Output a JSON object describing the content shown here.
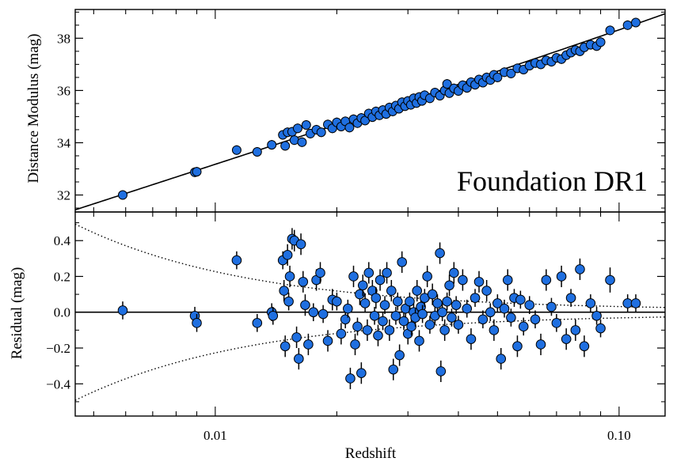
{
  "chart_data": [
    {
      "type": "scatter",
      "panel": "top",
      "annotation": "Foundation DR1",
      "ylabel": "Distance Modulus (mag)",
      "xscale": "log",
      "xlim": [
        0.0045,
        0.13
      ],
      "ylim": [
        31.35,
        39.1
      ],
      "yticks": [
        32,
        34,
        36,
        38
      ],
      "grid": false,
      "model_line": "cosmology-fit",
      "marker_color": "#1f6fe0",
      "points": [
        [
          0.0059,
          32.0
        ],
        [
          0.0089,
          32.87
        ],
        [
          0.009,
          32.89
        ],
        [
          0.0113,
          33.72
        ],
        [
          0.0127,
          33.65
        ],
        [
          0.0138,
          33.92
        ],
        [
          0.0147,
          34.3
        ],
        [
          0.0149,
          33.88
        ],
        [
          0.0151,
          34.4
        ],
        [
          0.0155,
          34.42
        ],
        [
          0.0157,
          34.1
        ],
        [
          0.016,
          34.55
        ],
        [
          0.0164,
          34.02
        ],
        [
          0.0168,
          34.68
        ],
        [
          0.0172,
          34.35
        ],
        [
          0.0178,
          34.5
        ],
        [
          0.0183,
          34.4
        ],
        [
          0.019,
          34.7
        ],
        [
          0.0195,
          34.55
        ],
        [
          0.02,
          34.78
        ],
        [
          0.0205,
          34.62
        ],
        [
          0.021,
          34.82
        ],
        [
          0.0215,
          34.58
        ],
        [
          0.022,
          34.9
        ],
        [
          0.0225,
          34.75
        ],
        [
          0.023,
          34.95
        ],
        [
          0.0235,
          34.85
        ],
        [
          0.024,
          35.12
        ],
        [
          0.0245,
          34.98
        ],
        [
          0.025,
          35.2
        ],
        [
          0.0255,
          35.05
        ],
        [
          0.026,
          35.25
        ],
        [
          0.0265,
          35.1
        ],
        [
          0.027,
          35.35
        ],
        [
          0.0275,
          35.2
        ],
        [
          0.028,
          35.42
        ],
        [
          0.0285,
          35.3
        ],
        [
          0.029,
          35.55
        ],
        [
          0.0295,
          35.4
        ],
        [
          0.03,
          35.6
        ],
        [
          0.0305,
          35.45
        ],
        [
          0.031,
          35.7
        ],
        [
          0.0315,
          35.52
        ],
        [
          0.032,
          35.75
        ],
        [
          0.0325,
          35.6
        ],
        [
          0.033,
          35.82
        ],
        [
          0.034,
          35.7
        ],
        [
          0.035,
          35.92
        ],
        [
          0.036,
          35.8
        ],
        [
          0.037,
          36.0
        ],
        [
          0.0375,
          36.25
        ],
        [
          0.038,
          35.9
        ],
        [
          0.039,
          36.08
        ],
        [
          0.04,
          35.98
        ],
        [
          0.041,
          36.2
        ],
        [
          0.042,
          36.1
        ],
        [
          0.043,
          36.32
        ],
        [
          0.044,
          36.22
        ],
        [
          0.045,
          36.42
        ],
        [
          0.046,
          36.3
        ],
        [
          0.047,
          36.5
        ],
        [
          0.048,
          36.4
        ],
        [
          0.049,
          36.6
        ],
        [
          0.05,
          36.5
        ],
        [
          0.052,
          36.7
        ],
        [
          0.054,
          36.65
        ],
        [
          0.056,
          36.85
        ],
        [
          0.058,
          36.8
        ],
        [
          0.06,
          36.95
        ],
        [
          0.062,
          37.05
        ],
        [
          0.064,
          37.0
        ],
        [
          0.066,
          37.15
        ],
        [
          0.068,
          37.1
        ],
        [
          0.07,
          37.25
        ],
        [
          0.072,
          37.2
        ],
        [
          0.074,
          37.35
        ],
        [
          0.076,
          37.45
        ],
        [
          0.078,
          37.55
        ],
        [
          0.08,
          37.5
        ],
        [
          0.082,
          37.65
        ],
        [
          0.085,
          37.75
        ],
        [
          0.088,
          37.7
        ],
        [
          0.09,
          37.85
        ],
        [
          0.095,
          38.3
        ],
        [
          0.105,
          38.5
        ],
        [
          0.11,
          38.6
        ]
      ]
    },
    {
      "type": "scatter",
      "panel": "bottom",
      "xlabel": "Redshift",
      "ylabel": "Residual (mag)",
      "xscale": "log",
      "xlim": [
        0.0045,
        0.13
      ],
      "ylim": [
        -0.58,
        0.56
      ],
      "yticks": [
        -0.4,
        -0.2,
        0.0,
        0.2,
        0.4
      ],
      "xticks": [
        0.01,
        0.1
      ],
      "xtick_labels": [
        "0.01",
        "0.10"
      ],
      "ytick_labels": [
        "−0.4",
        "−0.2",
        "0.0",
        "0.2",
        "0.4"
      ],
      "grid": false,
      "zero_line": true,
      "envelope": "dotted ±σ(z)",
      "marker_color": "#1f6fe0",
      "points": [
        [
          0.0059,
          0.01,
          0.05
        ],
        [
          0.0089,
          -0.02,
          0.05
        ],
        [
          0.009,
          -0.06,
          0.05
        ],
        [
          0.0113,
          0.29,
          0.05
        ],
        [
          0.0127,
          -0.06,
          0.05
        ],
        [
          0.0138,
          0.0,
          0.05
        ],
        [
          0.0139,
          -0.02,
          0.05
        ],
        [
          0.0147,
          0.29,
          0.05
        ],
        [
          0.0148,
          0.12,
          0.06
        ],
        [
          0.0149,
          -0.19,
          0.06
        ],
        [
          0.0151,
          0.32,
          0.06
        ],
        [
          0.0152,
          0.06,
          0.05
        ],
        [
          0.0153,
          0.2,
          0.06
        ],
        [
          0.0155,
          0.41,
          0.06
        ],
        [
          0.0157,
          0.4,
          0.06
        ],
        [
          0.0159,
          -0.14,
          0.06
        ],
        [
          0.0161,
          -0.26,
          0.06
        ],
        [
          0.0163,
          0.38,
          0.06
        ],
        [
          0.0165,
          0.17,
          0.06
        ],
        [
          0.0167,
          0.04,
          0.06
        ],
        [
          0.017,
          -0.18,
          0.06
        ],
        [
          0.0175,
          0.0,
          0.05
        ],
        [
          0.0178,
          0.18,
          0.06
        ],
        [
          0.0182,
          0.22,
          0.06
        ],
        [
          0.0185,
          -0.01,
          0.05
        ],
        [
          0.019,
          -0.16,
          0.06
        ],
        [
          0.0195,
          0.07,
          0.06
        ],
        [
          0.02,
          0.06,
          0.05
        ],
        [
          0.0205,
          -0.12,
          0.06
        ],
        [
          0.021,
          -0.04,
          0.05
        ],
        [
          0.0213,
          0.02,
          0.05
        ],
        [
          0.0216,
          -0.37,
          0.06
        ],
        [
          0.022,
          0.2,
          0.06
        ],
        [
          0.0222,
          -0.18,
          0.06
        ],
        [
          0.0225,
          -0.08,
          0.05
        ],
        [
          0.0228,
          0.1,
          0.06
        ],
        [
          0.023,
          -0.34,
          0.06
        ],
        [
          0.0232,
          0.15,
          0.06
        ],
        [
          0.0235,
          0.05,
          0.05
        ],
        [
          0.0238,
          -0.1,
          0.06
        ],
        [
          0.024,
          0.22,
          0.06
        ],
        [
          0.0245,
          0.12,
          0.06
        ],
        [
          0.0248,
          -0.02,
          0.05
        ],
        [
          0.025,
          0.08,
          0.06
        ],
        [
          0.0253,
          -0.13,
          0.06
        ],
        [
          0.0256,
          0.18,
          0.06
        ],
        [
          0.026,
          -0.05,
          0.05
        ],
        [
          0.0263,
          0.04,
          0.05
        ],
        [
          0.0266,
          0.22,
          0.06
        ],
        [
          0.027,
          -0.1,
          0.06
        ],
        [
          0.0273,
          0.12,
          0.06
        ],
        [
          0.0276,
          -0.32,
          0.06
        ],
        [
          0.028,
          -0.02,
          0.05
        ],
        [
          0.0283,
          0.06,
          0.05
        ],
        [
          0.0286,
          -0.24,
          0.06
        ],
        [
          0.029,
          0.28,
          0.06
        ],
        [
          0.0293,
          -0.05,
          0.05
        ],
        [
          0.0296,
          0.02,
          0.05
        ],
        [
          0.03,
          -0.12,
          0.06
        ],
        [
          0.0303,
          0.06,
          0.05
        ],
        [
          0.0306,
          -0.08,
          0.05
        ],
        [
          0.031,
          0.0,
          0.05
        ],
        [
          0.0313,
          -0.03,
          0.05
        ],
        [
          0.0316,
          0.12,
          0.06
        ],
        [
          0.032,
          -0.16,
          0.06
        ],
        [
          0.0323,
          0.03,
          0.05
        ],
        [
          0.0326,
          -0.01,
          0.05
        ],
        [
          0.033,
          0.08,
          0.05
        ],
        [
          0.0335,
          0.2,
          0.06
        ],
        [
          0.034,
          -0.07,
          0.05
        ],
        [
          0.0345,
          0.1,
          0.06
        ],
        [
          0.035,
          -0.02,
          0.05
        ],
        [
          0.0355,
          0.05,
          0.05
        ],
        [
          0.036,
          0.33,
          0.06
        ],
        [
          0.0362,
          -0.33,
          0.06
        ],
        [
          0.0365,
          0.0,
          0.05
        ],
        [
          0.037,
          -0.1,
          0.06
        ],
        [
          0.0375,
          0.06,
          0.05
        ],
        [
          0.038,
          0.15,
          0.06
        ],
        [
          0.0385,
          -0.03,
          0.05
        ],
        [
          0.039,
          0.22,
          0.06
        ],
        [
          0.0395,
          0.04,
          0.05
        ],
        [
          0.04,
          -0.07,
          0.05
        ],
        [
          0.041,
          0.18,
          0.06
        ],
        [
          0.042,
          0.02,
          0.05
        ],
        [
          0.043,
          -0.15,
          0.06
        ],
        [
          0.044,
          0.08,
          0.05
        ],
        [
          0.045,
          0.17,
          0.06
        ],
        [
          0.046,
          -0.04,
          0.05
        ],
        [
          0.047,
          0.12,
          0.06
        ],
        [
          0.048,
          0.0,
          0.05
        ],
        [
          0.049,
          -0.1,
          0.06
        ],
        [
          0.05,
          0.05,
          0.05
        ],
        [
          0.051,
          -0.26,
          0.06
        ],
        [
          0.052,
          0.02,
          0.05
        ],
        [
          0.053,
          0.18,
          0.06
        ],
        [
          0.054,
          -0.03,
          0.05
        ],
        [
          0.055,
          0.08,
          0.05
        ],
        [
          0.056,
          -0.19,
          0.06
        ],
        [
          0.057,
          0.07,
          0.05
        ],
        [
          0.058,
          -0.08,
          0.05
        ],
        [
          0.06,
          0.04,
          0.05
        ],
        [
          0.062,
          -0.04,
          0.05
        ],
        [
          0.064,
          -0.18,
          0.06
        ],
        [
          0.066,
          0.18,
          0.06
        ],
        [
          0.068,
          0.03,
          0.05
        ],
        [
          0.07,
          -0.06,
          0.05
        ],
        [
          0.072,
          0.2,
          0.06
        ],
        [
          0.074,
          -0.15,
          0.06
        ],
        [
          0.076,
          0.08,
          0.05
        ],
        [
          0.078,
          -0.1,
          0.06
        ],
        [
          0.08,
          0.24,
          0.06
        ],
        [
          0.082,
          -0.19,
          0.06
        ],
        [
          0.085,
          0.05,
          0.05
        ],
        [
          0.088,
          -0.02,
          0.05
        ],
        [
          0.09,
          -0.09,
          0.05
        ],
        [
          0.095,
          0.18,
          0.07
        ],
        [
          0.105,
          0.05,
          0.05
        ],
        [
          0.11,
          0.05,
          0.05
        ]
      ]
    }
  ],
  "colors": {
    "marker_fill": "#1f6fe0",
    "marker_edge": "#000000",
    "line": "#000000"
  }
}
